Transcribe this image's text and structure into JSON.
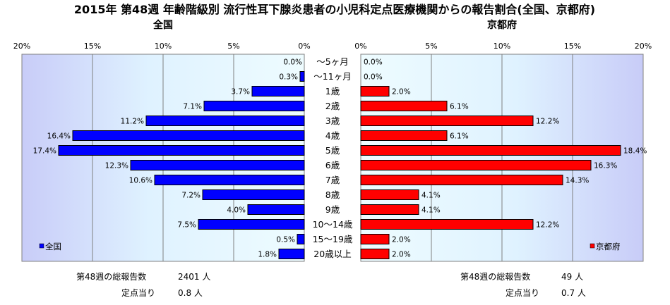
{
  "chart_data": {
    "type": "bar",
    "title": "2015年 第48週 年齢階級別 流行性耳下腺炎患者の小児科定点医療機関からの報告割合(全国、京都府)",
    "categories": [
      "〜5ヶ月",
      "〜11ヶ月",
      "1歳",
      "2歳",
      "3歳",
      "4歳",
      "5歳",
      "6歳",
      "7歳",
      "8歳",
      "9歳",
      "10〜14歳",
      "15〜19歳",
      "20歳以上"
    ],
    "series": [
      {
        "name": "全国",
        "color": "#0000ff",
        "values": [
          0.0,
          0.3,
          3.7,
          7.1,
          11.2,
          16.4,
          17.4,
          12.3,
          10.6,
          7.2,
          4.0,
          7.5,
          0.5,
          1.8
        ],
        "labels": [
          "0.0%",
          "0.3%",
          "3.7%",
          "7.1%",
          "11.2%",
          "16.4%",
          "17.4%",
          "12.3%",
          "10.6%",
          "7.2%",
          "4.0%",
          "7.5%",
          "0.5%",
          "1.8%"
        ]
      },
      {
        "name": "京都府",
        "color": "#ff0000",
        "values": [
          0.0,
          0.0,
          2.0,
          6.1,
          12.2,
          6.1,
          18.4,
          16.3,
          14.3,
          4.1,
          4.1,
          12.2,
          2.0,
          2.0
        ],
        "labels": [
          "0.0%",
          "0.0%",
          "2.0%",
          "6.1%",
          "12.2%",
          "6.1%",
          "18.4%",
          "16.3%",
          "14.3%",
          "4.1%",
          "4.1%",
          "12.2%",
          "2.0%",
          "2.0%"
        ]
      }
    ],
    "left_panel_title": "全国",
    "right_panel_title": "京都府",
    "left_ticks": [
      "20%",
      "15%",
      "10%",
      "5%",
      "0%"
    ],
    "right_ticks": [
      "0%",
      "5%",
      "10%",
      "15%",
      "20%"
    ],
    "xlim": [
      0,
      20
    ],
    "grid": true,
    "legend_position": "bottom-left (全国), bottom-right (京都府)",
    "legend": {
      "left": "全国",
      "right": "京都府"
    }
  },
  "footer": {
    "left_total_label": "第48週の総報告数",
    "left_total_value": "2401 人",
    "left_per_label": "定点当り",
    "left_per_value": "0.8 人",
    "right_total_label": "第48週の総報告数",
    "right_total_value": "49 人",
    "right_per_label": "定点当り",
    "right_per_value": "0.7 人"
  }
}
